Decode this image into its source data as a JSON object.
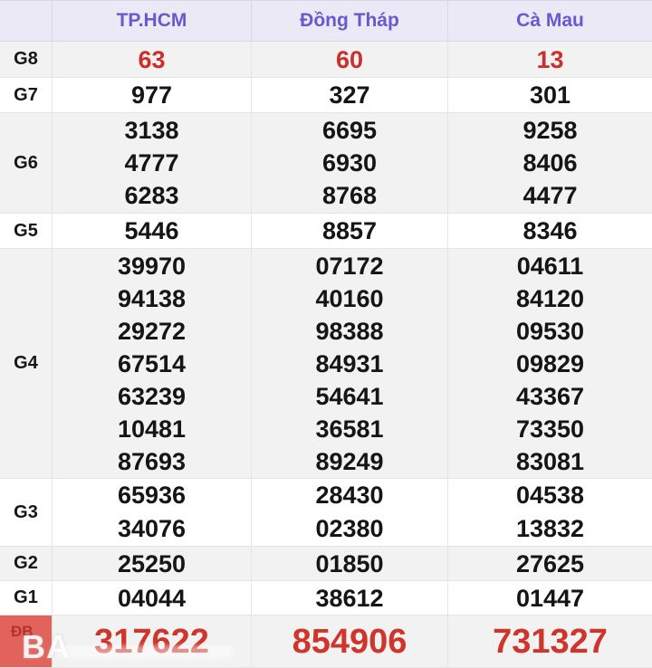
{
  "table": {
    "corner_label": "",
    "columns": [
      "TP.HCM",
      "Đồng Tháp",
      "Cà Mau"
    ],
    "rows": [
      {
        "label": "G8",
        "cells": [
          [
            "63"
          ],
          [
            "60"
          ],
          [
            "13"
          ]
        ]
      },
      {
        "label": "G7",
        "cells": [
          [
            "977"
          ],
          [
            "327"
          ],
          [
            "301"
          ]
        ]
      },
      {
        "label": "G6",
        "cells": [
          [
            "3138",
            "4777",
            "6283"
          ],
          [
            "6695",
            "6930",
            "8768"
          ],
          [
            "9258",
            "8406",
            "4477"
          ]
        ]
      },
      {
        "label": "G5",
        "cells": [
          [
            "5446"
          ],
          [
            "8857"
          ],
          [
            "8346"
          ]
        ]
      },
      {
        "label": "G4",
        "cells": [
          [
            "39970",
            "94138",
            "29272",
            "67514",
            "63239",
            "10481",
            "87693"
          ],
          [
            "07172",
            "40160",
            "98388",
            "84931",
            "54641",
            "36581",
            "89249"
          ],
          [
            "04611",
            "84120",
            "09530",
            "09829",
            "43367",
            "73350",
            "83081"
          ]
        ]
      },
      {
        "label": "G3",
        "cells": [
          [
            "65936",
            "34076"
          ],
          [
            "28430",
            "02380"
          ],
          [
            "04538",
            "13832"
          ]
        ]
      },
      {
        "label": "G2",
        "cells": [
          [
            "25250"
          ],
          [
            "01850"
          ],
          [
            "27625"
          ]
        ]
      },
      {
        "label": "G1",
        "cells": [
          [
            "04044"
          ],
          [
            "38612"
          ],
          [
            "01447"
          ]
        ]
      },
      {
        "label": "ĐB",
        "cells": [
          [
            "317622"
          ],
          [
            "854906"
          ],
          [
            "731327"
          ]
        ]
      }
    ]
  },
  "watermark": {
    "text": "BA"
  },
  "colors": {
    "accent": "#6759ce",
    "value_red": "#cc2f2a",
    "special_red": "#cf352a",
    "special_label_bg": "#e2635c",
    "row_shade": "#f2f2f2",
    "header_bg": "#ebe9f6"
  }
}
